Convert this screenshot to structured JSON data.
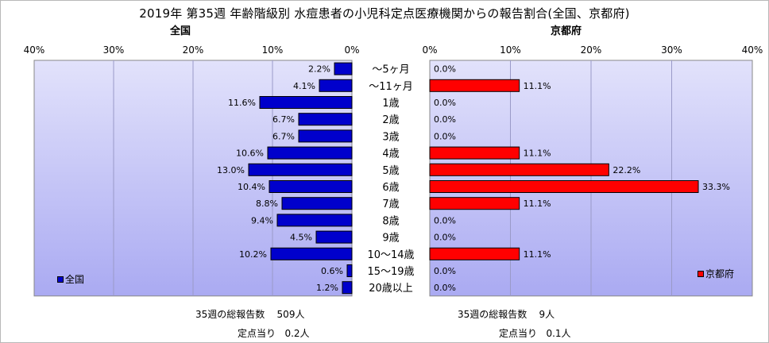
{
  "title": "2019年 第35週 年齢階級別 水痘患者の小児科定点医療機関からの報告割合(全国、京都府)",
  "categories": [
    "～5ヶ月",
    "～11ヶ月",
    "1歳",
    "2歳",
    "3歳",
    "4歳",
    "5歳",
    "6歳",
    "7歳",
    "8歳",
    "9歳",
    "10～14歳",
    "15～19歳",
    "20歳以上"
  ],
  "left_panel": {
    "subtitle": "全国",
    "legend": "全国",
    "color": "#0000cc",
    "stats_total_label": "35週の総報告数",
    "stats_total_value": "509人",
    "stats_per_label": "定点当り",
    "stats_per_value": "0.2人"
  },
  "right_panel": {
    "subtitle": "京都府",
    "legend": "京都府",
    "color": "#ff0000",
    "stats_total_label": "35週の総報告数",
    "stats_total_value": "9人",
    "stats_per_label": "定点当り",
    "stats_per_value": "0.1人"
  },
  "chart_data": [
    {
      "type": "bar",
      "title": "全国",
      "categories": [
        "～5ヶ月",
        "～11ヶ月",
        "1歳",
        "2歳",
        "3歳",
        "4歳",
        "5歳",
        "6歳",
        "7歳",
        "8歳",
        "9歳",
        "10～14歳",
        "15～19歳",
        "20歳以上"
      ],
      "series": [
        {
          "name": "全国",
          "values": [
            2.2,
            4.1,
            11.6,
            6.7,
            6.7,
            10.6,
            13.0,
            10.4,
            8.8,
            9.4,
            4.5,
            10.2,
            0.6,
            1.2
          ]
        }
      ],
      "value_labels": [
        "2.2%",
        "4.1%",
        "11.6%",
        "6.7%",
        "6.7%",
        "10.6%",
        "13.0%",
        "10.4%",
        "8.8%",
        "9.4%",
        "4.5%",
        "10.2%",
        "0.6%",
        "1.2%"
      ],
      "xlim": [
        0,
        40
      ],
      "xticks": [
        "40%",
        "30%",
        "20%",
        "10%",
        "0%"
      ],
      "orientation": "horizontal-reversed",
      "grid": true,
      "legend_position": "bottom-left"
    },
    {
      "type": "bar",
      "title": "京都府",
      "categories": [
        "～5ヶ月",
        "～11ヶ月",
        "1歳",
        "2歳",
        "3歳",
        "4歳",
        "5歳",
        "6歳",
        "7歳",
        "8歳",
        "9歳",
        "10～14歳",
        "15～19歳",
        "20歳以上"
      ],
      "series": [
        {
          "name": "京都府",
          "values": [
            0.0,
            11.1,
            0.0,
            0.0,
            0.0,
            11.1,
            22.2,
            33.3,
            11.1,
            0.0,
            0.0,
            11.1,
            0.0,
            0.0
          ]
        }
      ],
      "value_labels": [
        "0.0%",
        "11.1%",
        "0.0%",
        "0.0%",
        "0.0%",
        "11.1%",
        "22.2%",
        "33.3%",
        "11.1%",
        "0.0%",
        "0.0%",
        "11.1%",
        "0.0%",
        "0.0%"
      ],
      "xlim": [
        0,
        40
      ],
      "xticks": [
        "0%",
        "10%",
        "20%",
        "30%",
        "40%"
      ],
      "orientation": "horizontal",
      "grid": true,
      "legend_position": "bottom-right"
    }
  ]
}
